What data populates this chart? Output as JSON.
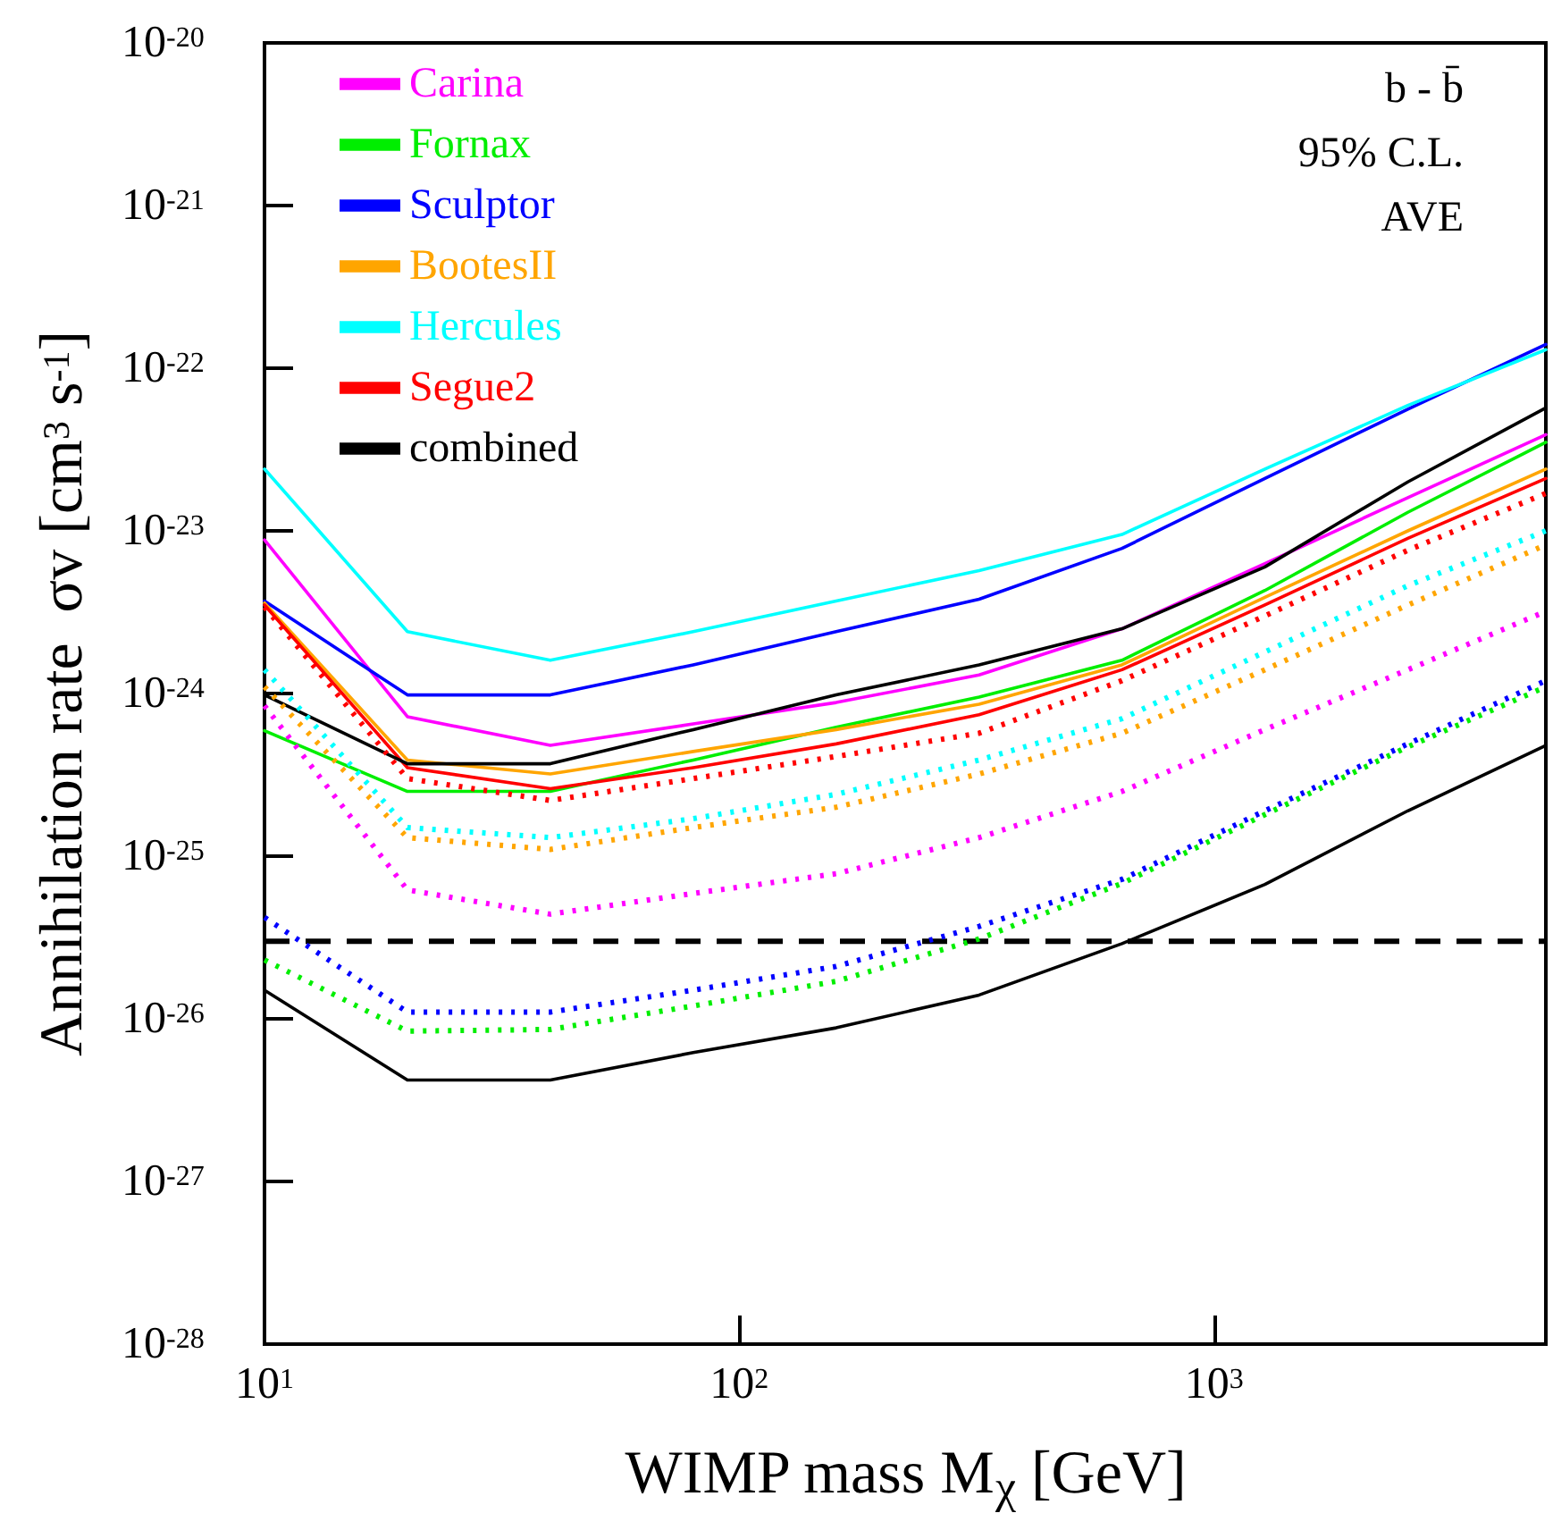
{
  "chart_data": {
    "type": "line",
    "xlabel": "WIMP mass M$_{χ}$ [GeV]",
    "ylabel": "Annihilation rate  σv [cm$^{3}$ s$^{-1}$]",
    "log": "xy",
    "xlim": [
      10,
      5000
    ],
    "ylim": [
      1e-28,
      1e-20
    ],
    "xticks": [
      {
        "value": 10,
        "label": "10$^{1}$"
      },
      {
        "value": 100,
        "label": "10$^{2}$"
      },
      {
        "value": 1000,
        "label": "10$^{3}$"
      }
    ],
    "yticks": [
      {
        "value": 1e-28,
        "label": "10$^{-28}$"
      },
      {
        "value": 1e-27,
        "label": "10$^{-27}$"
      },
      {
        "value": 1e-26,
        "label": "10$^{-26}$"
      },
      {
        "value": 1e-25,
        "label": "10$^{-25}$"
      },
      {
        "value": 1e-24,
        "label": "10$^{-24}$"
      },
      {
        "value": 1e-23,
        "label": "10$^{-23}$"
      },
      {
        "value": 1e-22,
        "label": "10$^{-22}$"
      },
      {
        "value": 1e-21,
        "label": "10$^{-21}$"
      },
      {
        "value": 1e-20,
        "label": "10$^{-20}$"
      }
    ],
    "x": [
      10,
      20,
      40,
      80,
      160,
      320,
      640,
      1280,
      2560,
      5000
    ],
    "series": [
      {
        "name": "Carina",
        "color": "#ff00ff",
        "values": [
          8.8e-24,
          7.2e-25,
          4.8e-25,
          6.5e-25,
          8.8e-25,
          1.3e-24,
          2.5e-24,
          6.3e-24,
          1.6e-23,
          3.9e-23
        ]
      },
      {
        "name": "Fornax",
        "color": "#00ee00",
        "values": [
          5.9e-25,
          2.5e-25,
          2.5e-25,
          3.9e-25,
          6.2e-25,
          9.5e-25,
          1.6e-24,
          4.3e-24,
          1.3e-23,
          3.5e-23
        ]
      },
      {
        "name": "Sculptor",
        "color": "#0000ff",
        "values": [
          3.7e-24,
          9.8e-25,
          9.8e-25,
          1.5e-24,
          2.4e-24,
          3.8e-24,
          7.8e-24,
          2.1e-23,
          5.6e-23,
          1.4e-22
        ]
      },
      {
        "name": "BootesII",
        "color": "#ffa500",
        "values": [
          3.6e-24,
          3.9e-25,
          3.2e-25,
          4.4e-25,
          6e-25,
          8.6e-25,
          1.5e-24,
          3.9e-24,
          1e-23,
          2.4e-23
        ]
      },
      {
        "name": "Hercules",
        "color": "#00ffff",
        "values": [
          2.4e-23,
          2.4e-24,
          1.6e-24,
          2.4e-24,
          3.7e-24,
          5.7e-24,
          9.5e-24,
          2.4e-23,
          5.9e-23,
          1.3e-22
        ]
      },
      {
        "name": "Segue2",
        "color": "#ff0000",
        "values": [
          3.5e-24,
          3.5e-25,
          2.6e-25,
          3.5e-25,
          4.9e-25,
          7.4e-25,
          1.4e-24,
          3.5e-24,
          9e-24,
          2.1e-23
        ]
      },
      {
        "name": "combined",
        "color": "#000000",
        "values": [
          9.8e-25,
          3.7e-25,
          3.7e-25,
          6e-25,
          9.8e-25,
          1.5e-24,
          2.5e-24,
          6e-24,
          2e-23,
          5.7e-23
        ]
      },
      {
        "color": "#ff00ff",
        "line_style": "dotted",
        "values": [
          8.4e-25,
          6.2e-26,
          4.4e-26,
          5.9e-26,
          7.8e-26,
          1.3e-25,
          2.5e-25,
          6e-25,
          1.4e-24,
          3.2e-24
        ]
      },
      {
        "color": "#00ee00",
        "line_style": "dotted",
        "values": [
          2.3e-26,
          8.4e-27,
          8.6e-27,
          1.2e-26,
          1.7e-26,
          3.1e-26,
          6.8e-26,
          1.8e-25,
          4.7e-25,
          1.1e-24
        ]
      },
      {
        "color": "#0000ff",
        "line_style": "dotted",
        "values": [
          4.2e-26,
          1.1e-26,
          1.1e-26,
          1.5e-26,
          2.1e-26,
          3.7e-26,
          7.2e-26,
          1.9e-25,
          4.9e-25,
          1.2e-24
        ]
      },
      {
        "color": "#ffa500",
        "line_style": "dotted",
        "values": [
          1.1e-24,
          1.3e-25,
          1.1e-25,
          1.5e-25,
          2e-25,
          3.2e-25,
          5.7e-25,
          1.4e-24,
          3.5e-24,
          8.2e-24
        ]
      },
      {
        "color": "#00ffff",
        "line_style": "dotted",
        "values": [
          1.4e-24,
          1.5e-25,
          1.3e-25,
          1.7e-25,
          2.4e-25,
          3.9e-25,
          7e-25,
          1.8e-24,
          4.6e-24,
          1e-23
        ]
      },
      {
        "color": "#ff0000",
        "line_style": "dotted",
        "values": [
          3.4e-24,
          3e-25,
          2.2e-25,
          3e-25,
          4.1e-25,
          5.7e-25,
          1.2e-24,
          3e-24,
          7.6e-24,
          1.7e-23
        ]
      },
      {
        "color": "#000000",
        "values": [
          1.5e-26,
          4.2e-27,
          4.2e-27,
          6.2e-27,
          8.8e-27,
          1.4e-26,
          2.9e-26,
          6.7e-26,
          1.9e-25,
          4.8e-25
        ]
      }
    ],
    "ref_lines": [
      {
        "axis": "y",
        "value": 3e-26,
        "color": "#000000",
        "line_style": "dashed"
      }
    ],
    "annotations": [
      "b - b̄",
      "95% C.L.",
      "AVE"
    ],
    "legend": "top left",
    "grid": false,
    "marker": "none",
    "line_style": "solid"
  }
}
